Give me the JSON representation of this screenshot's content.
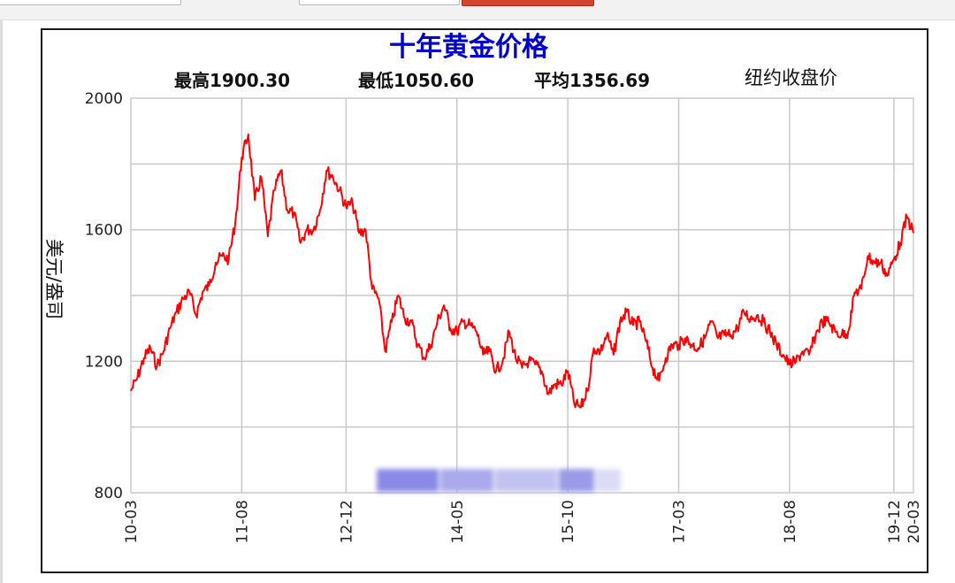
{
  "toolbar": {},
  "chart_data": {
    "type": "line",
    "title": "十年黄金价格",
    "stats": {
      "high": "最高1900.30",
      "low": "最低1050.60",
      "avg": "平均1356.69",
      "note": "纽约收盘价"
    },
    "ylabel": "美元/盎司",
    "ylim": [
      800,
      2000
    ],
    "yticks": [
      800,
      1200,
      1600,
      2000
    ],
    "xticks": [
      "10-03",
      "11-08",
      "12-12",
      "14-05",
      "15-10",
      "17-03",
      "18-08",
      "19-12",
      "20-03"
    ],
    "grid": true,
    "colors": {
      "line": "#ff0000",
      "title": "#0000cc"
    },
    "series": [
      {
        "points": [
          [
            "10-03",
            1110
          ],
          [
            "10-04",
            1150
          ],
          [
            "10-05",
            1210
          ],
          [
            "10-06",
            1240
          ],
          [
            "10-07",
            1185
          ],
          [
            "10-08",
            1230
          ],
          [
            "10-09",
            1300
          ],
          [
            "10-10",
            1350
          ],
          [
            "10-11",
            1390
          ],
          [
            "10-12",
            1410
          ],
          [
            "11-01",
            1340
          ],
          [
            "11-02",
            1410
          ],
          [
            "11-03",
            1430
          ],
          [
            "11-04",
            1500
          ],
          [
            "11-05",
            1520
          ],
          [
            "11-06",
            1510
          ],
          [
            "11-07",
            1620
          ],
          [
            "11-08",
            1820
          ],
          [
            "11-09",
            1890
          ],
          [
            "11-10",
            1690
          ],
          [
            "11-11",
            1760
          ],
          [
            "11-12",
            1580
          ],
          [
            "12-01",
            1720
          ],
          [
            "12-02",
            1780
          ],
          [
            "12-03",
            1660
          ],
          [
            "12-04",
            1650
          ],
          [
            "12-05",
            1560
          ],
          [
            "12-06",
            1600
          ],
          [
            "12-07",
            1600
          ],
          [
            "12-08",
            1660
          ],
          [
            "12-09",
            1780
          ],
          [
            "12-10",
            1760
          ],
          [
            "12-11",
            1720
          ],
          [
            "12-12",
            1670
          ],
          [
            "13-01",
            1680
          ],
          [
            "13-02",
            1590
          ],
          [
            "13-03",
            1600
          ],
          [
            "13-04",
            1420
          ],
          [
            "13-05",
            1390
          ],
          [
            "13-06",
            1230
          ],
          [
            "13-07",
            1320
          ],
          [
            "13-08",
            1400
          ],
          [
            "13-09",
            1330
          ],
          [
            "13-10",
            1320
          ],
          [
            "13-11",
            1250
          ],
          [
            "13-12",
            1210
          ],
          [
            "14-01",
            1250
          ],
          [
            "14-02",
            1320
          ],
          [
            "14-03",
            1370
          ],
          [
            "14-04",
            1300
          ],
          [
            "14-05",
            1290
          ],
          [
            "14-06",
            1320
          ],
          [
            "14-07",
            1310
          ],
          [
            "14-08",
            1290
          ],
          [
            "14-09",
            1220
          ],
          [
            "14-10",
            1230
          ],
          [
            "14-11",
            1170
          ],
          [
            "14-12",
            1200
          ],
          [
            "15-01",
            1290
          ],
          [
            "15-02",
            1210
          ],
          [
            "15-03",
            1180
          ],
          [
            "15-04",
            1200
          ],
          [
            "15-05",
            1190
          ],
          [
            "15-06",
            1170
          ],
          [
            "15-07",
            1100
          ],
          [
            "15-08",
            1130
          ],
          [
            "15-09",
            1130
          ],
          [
            "15-10",
            1170
          ],
          [
            "15-11",
            1070
          ],
          [
            "15-12",
            1060
          ],
          [
            "16-01",
            1110
          ],
          [
            "16-02",
            1240
          ],
          [
            "16-03",
            1230
          ],
          [
            "16-04",
            1280
          ],
          [
            "16-05",
            1220
          ],
          [
            "16-06",
            1320
          ],
          [
            "16-07",
            1350
          ],
          [
            "16-08",
            1310
          ],
          [
            "16-09",
            1320
          ],
          [
            "16-10",
            1260
          ],
          [
            "16-11",
            1180
          ],
          [
            "16-12",
            1140
          ],
          [
            "17-01",
            1210
          ],
          [
            "17-02",
            1250
          ],
          [
            "17-03",
            1250
          ],
          [
            "17-04",
            1270
          ],
          [
            "17-05",
            1250
          ],
          [
            "17-06",
            1240
          ],
          [
            "17-07",
            1270
          ],
          [
            "17-08",
            1320
          ],
          [
            "17-09",
            1270
          ],
          [
            "17-10",
            1280
          ],
          [
            "17-11",
            1280
          ],
          [
            "17-12",
            1300
          ],
          [
            "18-01",
            1350
          ],
          [
            "18-02",
            1330
          ],
          [
            "18-03",
            1340
          ],
          [
            "18-04",
            1320
          ],
          [
            "18-05",
            1290
          ],
          [
            "18-06",
            1250
          ],
          [
            "18-07",
            1220
          ],
          [
            "18-08",
            1190
          ],
          [
            "18-09",
            1200
          ],
          [
            "18-10",
            1230
          ],
          [
            "18-11",
            1220
          ],
          [
            "18-12",
            1280
          ],
          [
            "19-01",
            1320
          ],
          [
            "19-02",
            1320
          ],
          [
            "19-03",
            1290
          ],
          [
            "19-04",
            1280
          ],
          [
            "19-05",
            1290
          ],
          [
            "19-06",
            1410
          ],
          [
            "19-07",
            1420
          ],
          [
            "19-08",
            1520
          ],
          [
            "19-09",
            1500
          ],
          [
            "19-10",
            1500
          ],
          [
            "19-11",
            1460
          ],
          [
            "19-12",
            1510
          ],
          [
            "20-01",
            1560
          ],
          [
            "20-02",
            1640
          ],
          [
            "20-03",
            1590
          ]
        ]
      }
    ]
  }
}
